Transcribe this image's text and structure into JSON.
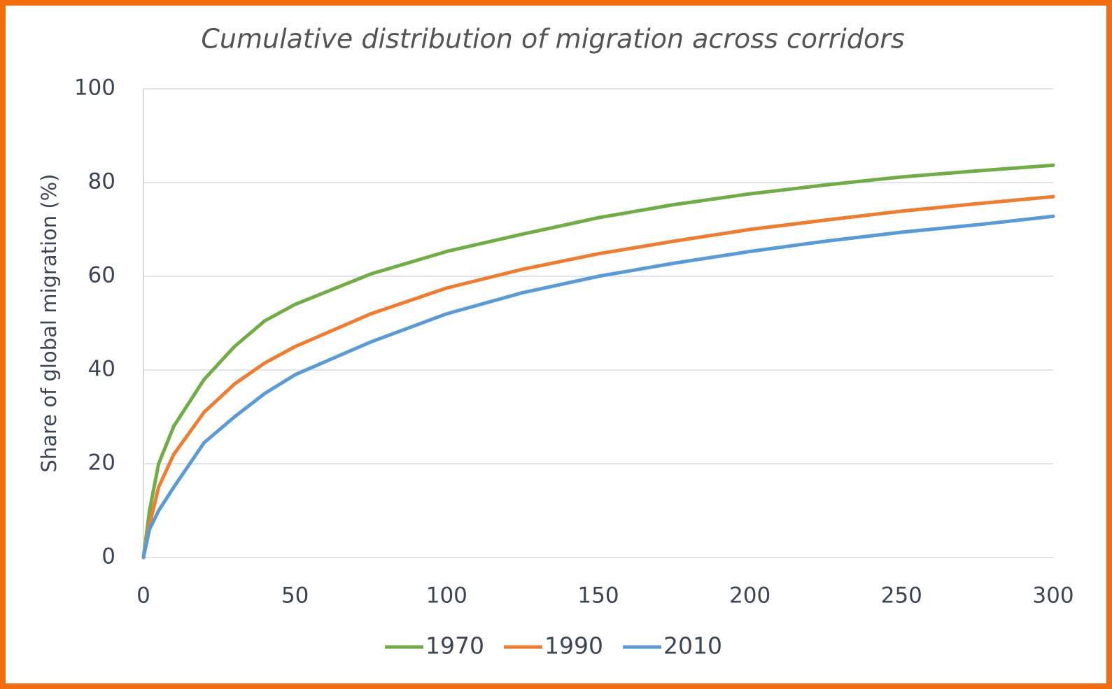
{
  "chart_data": {
    "type": "line",
    "title": "Cumulative distribution of migration across corridors",
    "y_label": "Share of global migration (%)",
    "x": [
      0,
      2,
      5,
      10,
      20,
      30,
      40,
      50,
      75,
      100,
      125,
      150,
      175,
      200,
      225,
      250,
      275,
      300
    ],
    "series": [
      {
        "name": "1970",
        "color": "#70ad47",
        "values": [
          0,
          10,
          20,
          28,
          38,
          45,
          50.5,
          54,
          60.5,
          65.3,
          69,
          72.5,
          75.3,
          77.6,
          79.5,
          81.2,
          82.5,
          83.7
        ]
      },
      {
        "name": "1990",
        "color": "#ed7d31",
        "values": [
          0,
          7,
          15,
          22,
          31,
          37,
          41.5,
          45,
          52,
          57.5,
          61.5,
          64.8,
          67.5,
          70,
          72,
          73.9,
          75.5,
          77
        ]
      },
      {
        "name": "2010",
        "color": "#5b9bd5",
        "values": [
          0,
          6,
          10,
          15,
          24.5,
          30,
          35,
          39,
          46,
          52,
          56.5,
          60,
          62.8,
          65.3,
          67.5,
          69.4,
          71,
          72.8
        ]
      }
    ],
    "xlim": [
      0,
      300
    ],
    "xticks": [
      0,
      50,
      100,
      150,
      200,
      250,
      300
    ],
    "ylim": [
      0,
      100
    ],
    "yticks": [
      0,
      20,
      40,
      60,
      80,
      100
    ],
    "grid": true,
    "legend": "bottom"
  }
}
